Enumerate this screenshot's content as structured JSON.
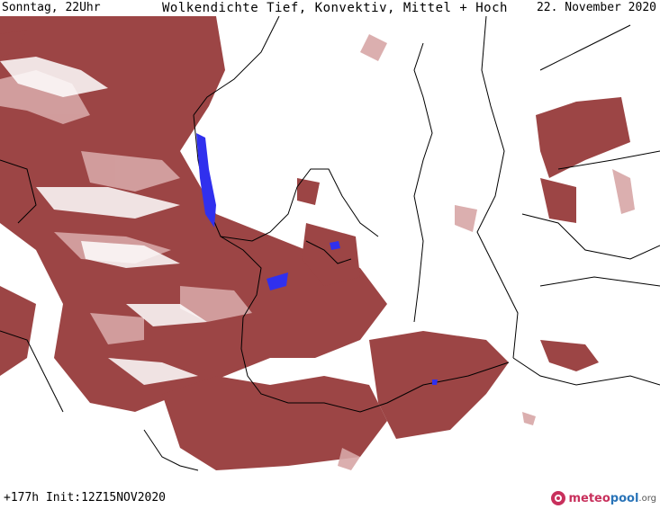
{
  "header": {
    "valid_time": "Sonntag, 22Uhr",
    "title": "Wolkendichte  Tief, Konvektiv, Mittel + Hoch",
    "date": "22. November 2020"
  },
  "footer": {
    "run_info": "+177h  Init:12Z15NOV2020"
  },
  "logo": {
    "part1": "meteo",
    "part2": "pool",
    "suffix": ".org"
  },
  "colors": {
    "cloud_dense": "#9c4545",
    "cloud_medium": "#b56a6a",
    "cloud_light": "#d7a6a6",
    "coastline": "#000000",
    "highlight": "#3030ee"
  }
}
